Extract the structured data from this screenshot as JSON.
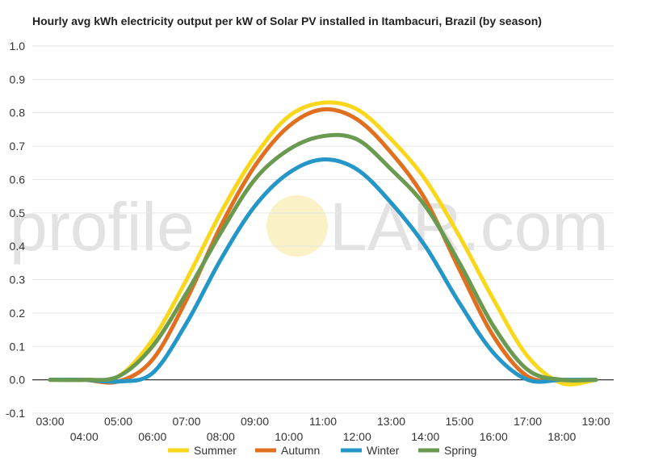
{
  "chart_data": {
    "type": "line",
    "title": "Hourly avg kWh electricity output per kW of Solar PV installed in Itambacuri, Brazil (by season)",
    "xlabel": "",
    "ylabel": "",
    "x": [
      "03:00",
      "04:00",
      "05:00",
      "06:00",
      "07:00",
      "08:00",
      "09:00",
      "10:00",
      "11:00",
      "12:00",
      "13:00",
      "14:00",
      "15:00",
      "16:00",
      "17:00",
      "18:00",
      "19:00"
    ],
    "ylim": [
      -0.1,
      1.0
    ],
    "yticks": [
      -0.1,
      0.0,
      0.1,
      0.2,
      0.3,
      0.4,
      0.5,
      0.6,
      0.7,
      0.8,
      0.9,
      1.0
    ],
    "ytick_labels": [
      "-0.1",
      "0.0",
      "0.1",
      "0.2",
      "0.3",
      "0.4",
      "0.5",
      "0.6",
      "0.7",
      "0.8",
      "0.9",
      "1.0"
    ],
    "grid": true,
    "legend_position": "bottom",
    "series": [
      {
        "name": "Summer",
        "color": "#f9d71c",
        "values": [
          0.0,
          0.0,
          0.01,
          0.12,
          0.3,
          0.5,
          0.67,
          0.79,
          0.83,
          0.81,
          0.72,
          0.6,
          0.43,
          0.24,
          0.07,
          -0.01,
          0.0
        ]
      },
      {
        "name": "Autumn",
        "color": "#e07020",
        "values": [
          0.0,
          0.0,
          -0.005,
          0.06,
          0.24,
          0.46,
          0.64,
          0.76,
          0.81,
          0.78,
          0.68,
          0.54,
          0.33,
          0.13,
          0.01,
          0.0,
          0.0
        ]
      },
      {
        "name": "Winter",
        "color": "#2596c8",
        "values": [
          0.0,
          0.0,
          -0.005,
          0.02,
          0.17,
          0.36,
          0.52,
          0.62,
          0.66,
          0.63,
          0.53,
          0.4,
          0.23,
          0.08,
          0.0,
          0.0,
          0.0
        ]
      },
      {
        "name": "Spring",
        "color": "#6a9a50",
        "values": [
          0.0,
          0.0,
          0.01,
          0.1,
          0.26,
          0.44,
          0.6,
          0.69,
          0.73,
          0.72,
          0.63,
          0.52,
          0.35,
          0.16,
          0.03,
          0.0,
          0.0
        ]
      }
    ]
  },
  "watermark": {
    "left": "profile",
    "right": "LAR.com"
  }
}
